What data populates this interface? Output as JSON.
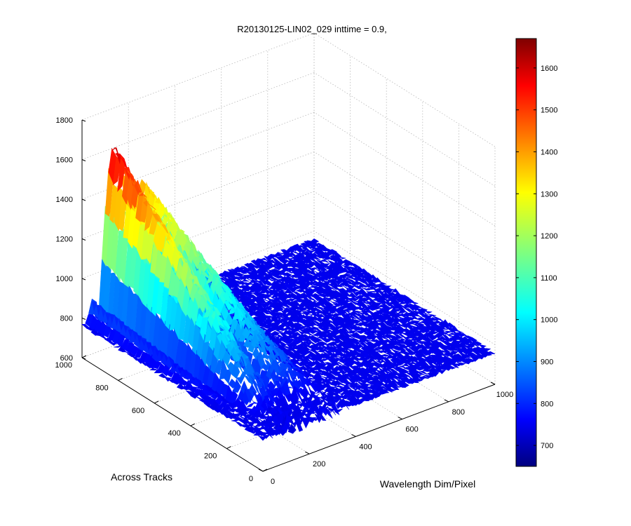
{
  "chart_data": {
    "type": "surface",
    "title": "R20130125-LIN02_029 inttime = 0.9,",
    "xlabel": "Wavelength Dim/Pixel",
    "ylabel": "Across Tracks",
    "zlabel": "",
    "x_ticks": [
      "0",
      "200",
      "400",
      "600",
      "800",
      "1000"
    ],
    "y_ticks": [
      "0",
      "200",
      "400",
      "600",
      "800",
      "1000"
    ],
    "z_ticks": [
      "600",
      "800",
      "1000",
      "1200",
      "1400",
      "1600",
      "1800"
    ],
    "xlim": [
      0,
      1000
    ],
    "ylim": [
      0,
      1000
    ],
    "zlim": [
      600,
      1800
    ],
    "colorbar": {
      "ticks": [
        "700",
        "800",
        "900",
        "1000",
        "1100",
        "1200",
        "1300",
        "1400",
        "1500",
        "1600"
      ],
      "range": [
        650,
        1670
      ],
      "colormap": "jet"
    },
    "baseline_value": 760,
    "surface_profile": {
      "description_free": true,
      "wavelength_pixels": [
        0,
        20,
        40,
        60,
        75,
        90,
        110,
        130,
        150,
        170,
        190,
        210,
        230,
        250,
        260,
        270,
        290,
        310,
        330,
        350,
        370,
        380,
        400,
        500,
        700,
        900,
        1000
      ],
      "peak_values": [
        760,
        760,
        890,
        760,
        800,
        1150,
        1450,
        1620,
        1560,
        1480,
        1200,
        820,
        1250,
        1370,
        1390,
        1360,
        1320,
        1260,
        1180,
        1100,
        960,
        760,
        760,
        760,
        760,
        760,
        760
      ]
    },
    "grid": true
  }
}
